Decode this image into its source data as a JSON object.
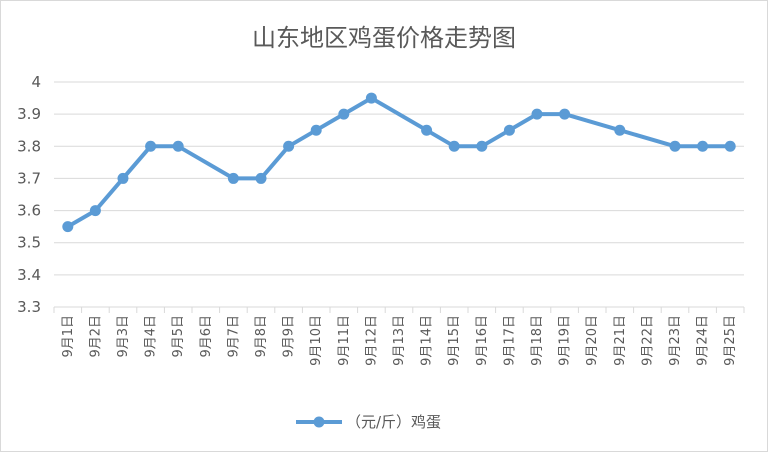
{
  "chart_data": {
    "type": "line",
    "title": "山东地区鸡蛋价格走势图",
    "categories": [
      "9月1日",
      "9月2日",
      "9月3日",
      "9月4日",
      "9月5日",
      "9月6日",
      "9月7日",
      "9月8日",
      "9月9日",
      "9月10日",
      "9月11日",
      "9月12日",
      "9月13日",
      "9月14日",
      "9月15日",
      "9月16日",
      "9月17日",
      "9月18日",
      "9月19日",
      "9月20日",
      "9月21日",
      "9月22日",
      "9月23日",
      "9月24日",
      "9月25日"
    ],
    "series": [
      {
        "name": "（元/斤）鸡蛋",
        "color": "#5b9bd5",
        "values": [
          3.55,
          3.6,
          3.7,
          3.8,
          3.8,
          null,
          3.7,
          3.7,
          3.8,
          3.85,
          3.9,
          3.95,
          null,
          3.85,
          3.8,
          3.8,
          3.85,
          3.9,
          3.9,
          null,
          3.85,
          null,
          3.8,
          3.8,
          3.8
        ]
      }
    ],
    "ylim": [
      3.3,
      4.0
    ],
    "yticks": [
      "3.3",
      "3.4",
      "3.5",
      "3.6",
      "3.7",
      "3.8",
      "3.9",
      "4"
    ],
    "grid": true,
    "legend": "bottom",
    "gridline_color": "#d9d9d9"
  }
}
